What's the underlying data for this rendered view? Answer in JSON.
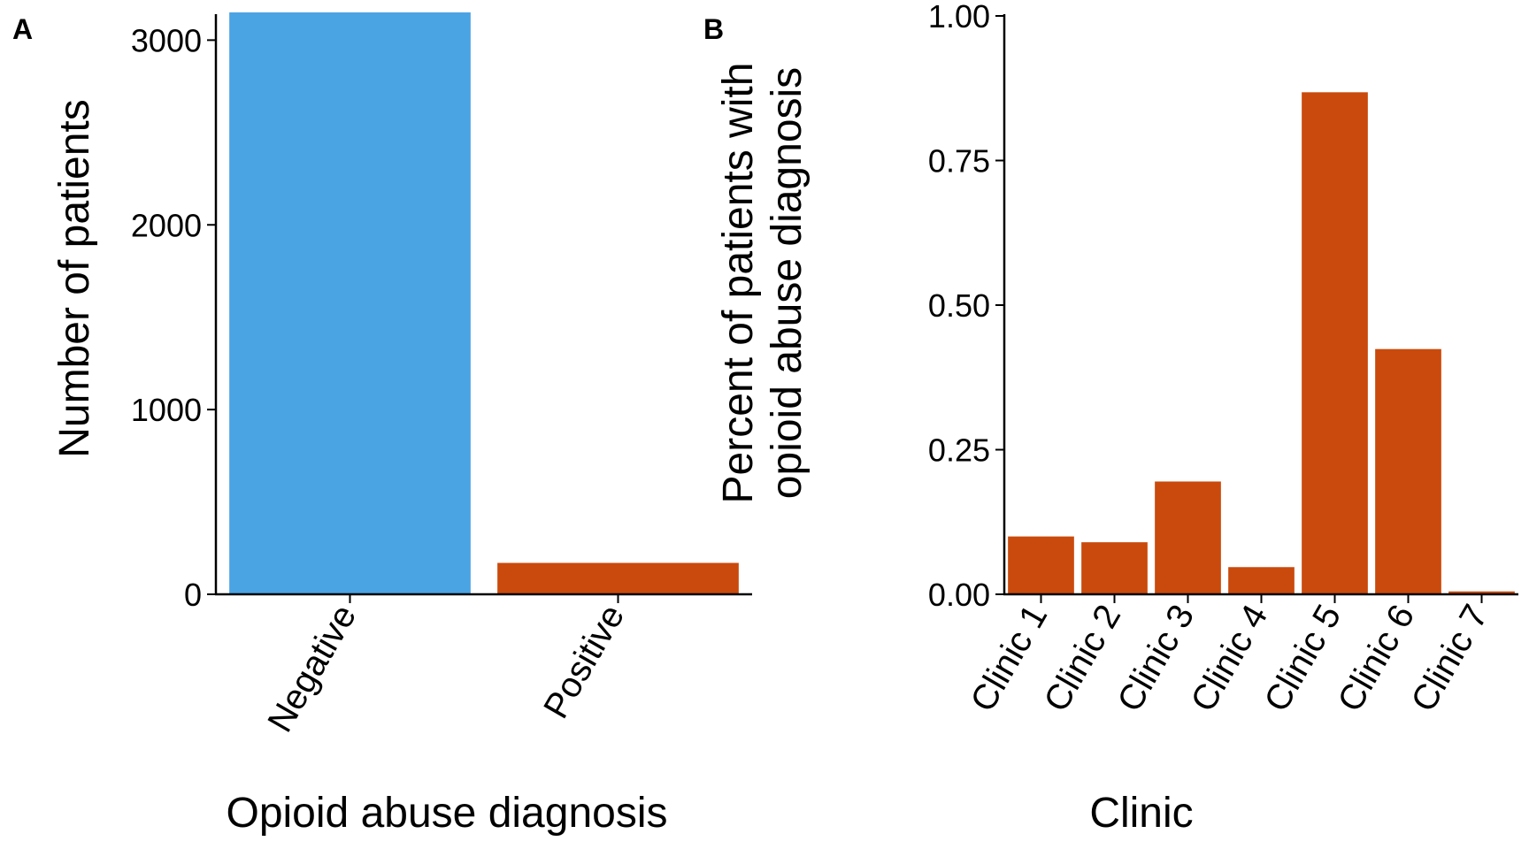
{
  "chart_data": [
    {
      "panel_label": "A",
      "type": "bar",
      "xlabel": "Opioid abuse diagnosis",
      "ylabel": "Number of patients",
      "categories": [
        "Negative",
        "Positive"
      ],
      "values": [
        3150,
        170
      ],
      "colors": [
        "#4aa3e3",
        "#c94a0c"
      ],
      "ylim": [
        0,
        3200
      ],
      "yticks": [
        0,
        1000,
        2000,
        3000
      ],
      "ytick_labels": [
        "0",
        "1000",
        "2000",
        "3000"
      ],
      "grid": false,
      "legend": "none"
    },
    {
      "panel_label": "B",
      "type": "bar",
      "xlabel": "Clinic",
      "ylabel_lines": [
        "Percent of patients with",
        "opioid abuse diagnosis"
      ],
      "categories": [
        "Clinic 1",
        "Clinic 2",
        "Clinic 3",
        "Clinic 4",
        "Clinic 5",
        "Clinic 6",
        "Clinic 7"
      ],
      "values": [
        0.1,
        0.09,
        0.195,
        0.047,
        0.868,
        0.424,
        0.005
      ],
      "colors": [
        "#c94a0c"
      ],
      "ylim": [
        0,
        1.0
      ],
      "yticks": [
        0,
        0.25,
        0.5,
        0.75,
        1.0
      ],
      "ytick_labels": [
        "0.00",
        "0.25",
        "0.50",
        "0.75",
        "1.00"
      ],
      "grid": false,
      "legend": "none"
    }
  ]
}
